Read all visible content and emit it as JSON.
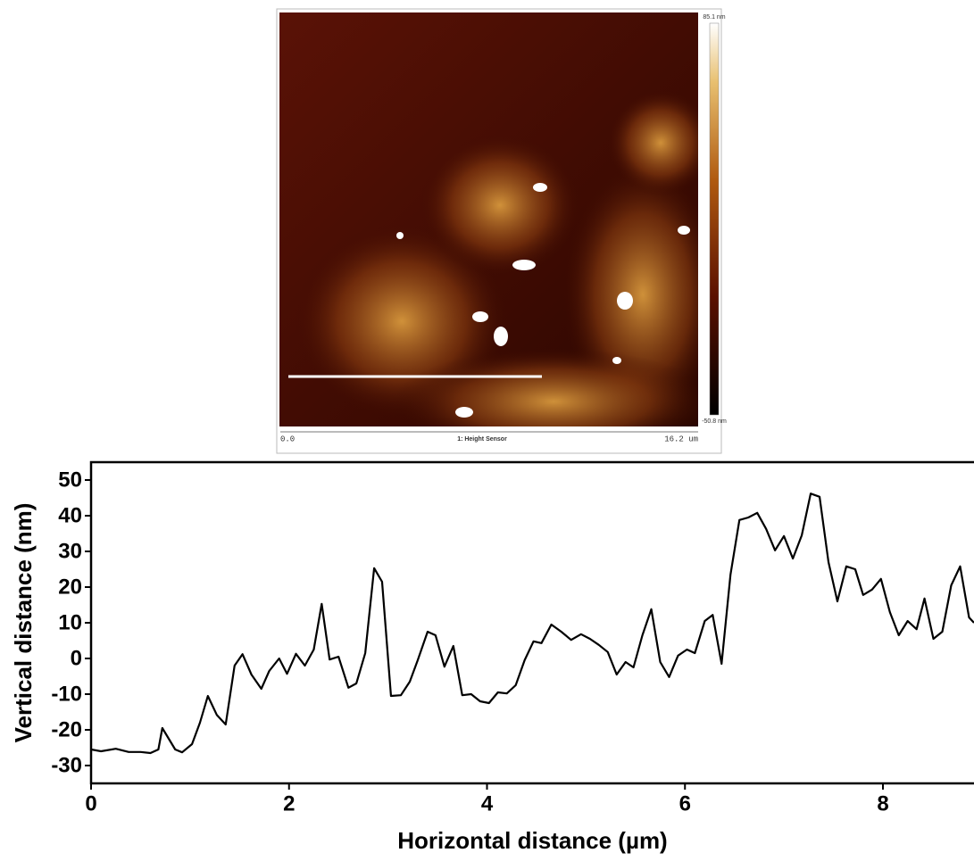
{
  "image": {
    "colorbar_max": "85.1 nm",
    "colorbar_min": "-50.8 nm",
    "scale_start": "0.0",
    "channel": "1: Height Sensor",
    "scale_end": "16.2 um"
  },
  "chart_data": {
    "type": "line",
    "x_label": "Horizontal distance (µm)",
    "y_label": "Vertical distance (nm)",
    "x": [
      0,
      0.1,
      0.25,
      0.38,
      0.5,
      0.6,
      0.68,
      0.72,
      0.85,
      0.92,
      1.02,
      1.1,
      1.18,
      1.27,
      1.36,
      1.45,
      1.53,
      1.62,
      1.72,
      1.8,
      1.9,
      1.98,
      2.07,
      2.16,
      2.25,
      2.33,
      2.41,
      2.5,
      2.6,
      2.68,
      2.77,
      2.86,
      2.94,
      3.03,
      3.13,
      3.22,
      3.3,
      3.4,
      3.48,
      3.57,
      3.66,
      3.75,
      3.84,
      3.93,
      4.02,
      4.11,
      4.2,
      4.29,
      4.38,
      4.47,
      4.55,
      4.65,
      4.75,
      4.85,
      4.95,
      5.04,
      5.13,
      5.22,
      5.31,
      5.4,
      5.48,
      5.57,
      5.66,
      5.75,
      5.84,
      5.93,
      6.02,
      6.1,
      6.2,
      6.28,
      6.37,
      6.46,
      6.55,
      6.64,
      6.73,
      6.82,
      6.91,
      7.0,
      7.09,
      7.18,
      7.27,
      7.36,
      7.45,
      7.54,
      7.63,
      7.72,
      7.8,
      7.89,
      7.98,
      8.07,
      8.16,
      8.25,
      8.34,
      8.42,
      8.51,
      8.6,
      8.69,
      8.78,
      8.87,
      8.92
    ],
    "values": [
      -25.5,
      -26,
      -25.3,
      -26.2,
      -26.2,
      -26.5,
      -25.5,
      -19.5,
      -25.5,
      -26.3,
      -24,
      -18,
      -10.5,
      -15.8,
      -18.5,
      -2,
      1.2,
      -4.5,
      -8.5,
      -3.5,
      0,
      -4.3,
      1.3,
      -2,
      2.5,
      15.3,
      -0.3,
      0.5,
      -8.2,
      -7,
      1.5,
      25.3,
      21.5,
      -10.5,
      -10.3,
      -6.5,
      -0.5,
      7.5,
      6.5,
      -2.3,
      3.5,
      -10.3,
      -10,
      -12,
      -12.5,
      -9.5,
      -9.8,
      -7.5,
      -0.5,
      4.8,
      4.3,
      9.5,
      7.5,
      5.2,
      6.8,
      5.5,
      3.8,
      1.8,
      -4.5,
      -1,
      -2.5,
      6.5,
      13.8,
      -1,
      -5.2,
      0.8,
      2.5,
      1.5,
      10.5,
      12.2,
      -1.5,
      23.5,
      38.8,
      39.5,
      40.8,
      36.3,
      30.3,
      34.3,
      28,
      34.5,
      46.2,
      45.3,
      27,
      16,
      25.8,
      25,
      17.8,
      19.3,
      22.3,
      13,
      6.5,
      10.5,
      8.2,
      16.8,
      5.5,
      7.5,
      20.5,
      25.8,
      11.5,
      10
    ],
    "color": "#000000",
    "xlim": [
      0,
      8.92
    ],
    "ylim": [
      -35,
      55
    ],
    "xticks": [
      0,
      2,
      4,
      6,
      8
    ],
    "yticks": [
      -30,
      -20,
      -10,
      0,
      10,
      20,
      30,
      40,
      50
    ]
  }
}
